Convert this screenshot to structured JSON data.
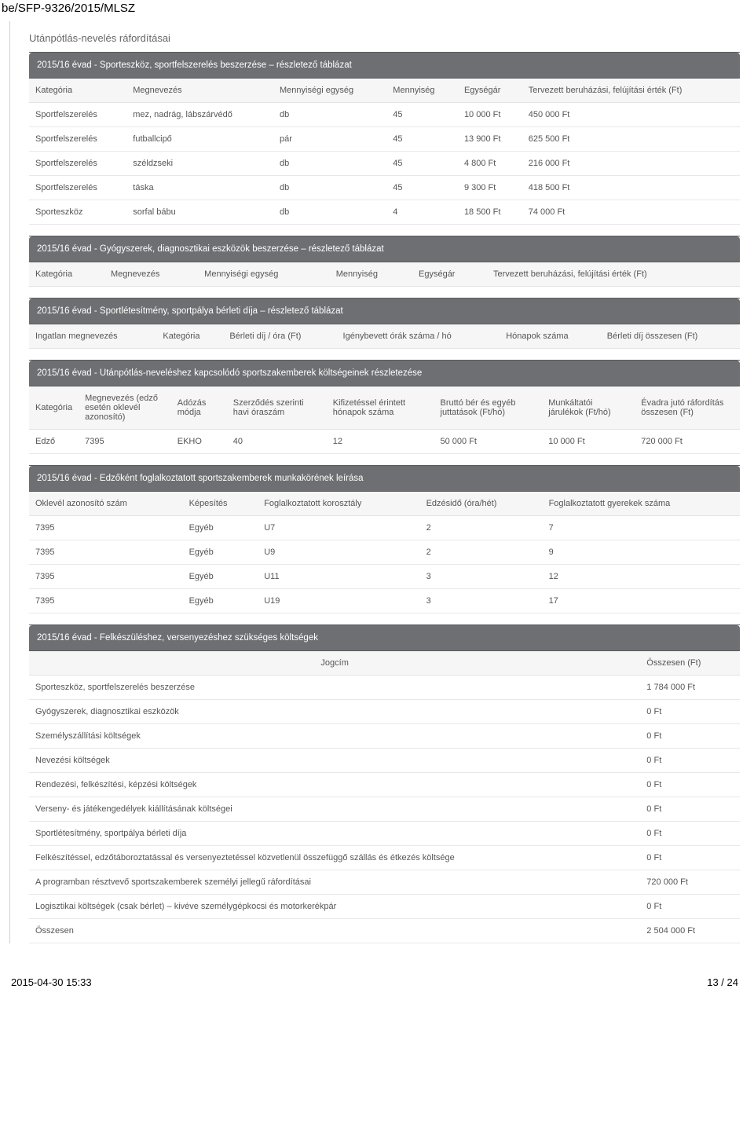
{
  "docId": "be/SFP-9326/2015/MLSZ",
  "sectionTitle": "Utánpótlás-nevelés ráfordításai",
  "table1": {
    "title": "2015/16 évad - Sporteszköz, sportfelszerelés beszerzése – részletező táblázat",
    "headers": [
      "Kategória",
      "Megnevezés",
      "Mennyiségi egység",
      "Mennyiség",
      "Egységár",
      "Tervezett beruházási, felújítási érték (Ft)"
    ],
    "rows": [
      [
        "Sportfelszerelés",
        "mez, nadrág, lábszárvédő",
        "db",
        "45",
        "10 000 Ft",
        "450 000 Ft"
      ],
      [
        "Sportfelszerelés",
        "futballcipő",
        "pár",
        "45",
        "13 900 Ft",
        "625 500 Ft"
      ],
      [
        "Sportfelszerelés",
        "széldzseki",
        "db",
        "45",
        "4 800 Ft",
        "216 000 Ft"
      ],
      [
        "Sportfelszerelés",
        "táska",
        "db",
        "45",
        "9 300 Ft",
        "418 500 Ft"
      ],
      [
        "Sporteszköz",
        "sorfal bábu",
        "db",
        "4",
        "18 500 Ft",
        "74 000 Ft"
      ]
    ]
  },
  "table2": {
    "title": "2015/16 évad - Gyógyszerek, diagnosztikai eszközök beszerzése – részletező táblázat",
    "headers": [
      "Kategória",
      "Megnevezés",
      "Mennyiségi egység",
      "Mennyiség",
      "Egységár",
      "Tervezett beruházási, felújítási érték (Ft)"
    ]
  },
  "table3": {
    "title": "2015/16 évad - Sportlétesítmény, sportpálya bérleti díja – részletező táblázat",
    "headers": [
      "Ingatlan megnevezés",
      "Kategória",
      "Bérleti díj / óra (Ft)",
      "Igénybevett órák száma / hó",
      "Hónapok száma",
      "Bérleti díj összesen (Ft)"
    ]
  },
  "table4": {
    "title": "2015/16 évad - Utánpótlás-neveléshez kapcsolódó sportszakemberek költségeinek részletezése",
    "headers": [
      "Kategória",
      "Megnevezés (edző esetén oklevél azonosító)",
      "Adózás módja",
      "Szerződés szerinti havi óraszám",
      "Kifizetéssel érintett hónapok száma",
      "Bruttó bér és egyéb juttatások (Ft/hó)",
      "Munkáltatói járulékok (Ft/hó)",
      "Évadra jutó ráfordítás összesen (Ft)"
    ],
    "rows": [
      [
        "Edző",
        "7395",
        "EKHO",
        "40",
        "12",
        "50 000 Ft",
        "10 000 Ft",
        "720 000 Ft"
      ]
    ]
  },
  "table5": {
    "title": "2015/16 évad - Edzőként foglalkoztatott sportszakemberek munkakörének leírása",
    "headers": [
      "Oklevél azonosító szám",
      "Képesítés",
      "Foglalkoztatott korosztály",
      "Edzésidő (óra/hét)",
      "Foglalkoztatott gyerekek száma"
    ],
    "rows": [
      [
        "7395",
        "Egyéb",
        "U7",
        "2",
        "7"
      ],
      [
        "7395",
        "Egyéb",
        "U9",
        "2",
        "9"
      ],
      [
        "7395",
        "Egyéb",
        "U11",
        "3",
        "12"
      ],
      [
        "7395",
        "Egyéb",
        "U19",
        "3",
        "17"
      ]
    ]
  },
  "table6": {
    "title": "2015/16 évad - Felkészüléshez, versenyezéshez szükséges költségek",
    "headers": [
      "Jogcím",
      "Összesen (Ft)"
    ],
    "rows": [
      [
        "Sporteszköz, sportfelszerelés beszerzése",
        "1 784 000 Ft"
      ],
      [
        "Gyógyszerek, diagnosztikai eszközök",
        "0 Ft"
      ],
      [
        "Személyszállítási költségek",
        "0 Ft"
      ],
      [
        "Nevezési költségek",
        "0 Ft"
      ],
      [
        "Rendezési, felkészítési, képzési költségek",
        "0 Ft"
      ],
      [
        "Verseny- és játékengedélyek kiállításának költségei",
        "0 Ft"
      ],
      [
        "Sportlétesítmény, sportpálya bérleti díja",
        "0 Ft"
      ],
      [
        "Felkészítéssel, edzőtáboroztatással és versenyeztetéssel közvetlenül összefüggő szállás és étkezés költsége",
        "0 Ft"
      ],
      [
        "A programban résztvevő sportszakemberek személyi jellegű ráfordításai",
        "720 000 Ft"
      ],
      [
        "Logisztikai költségek (csak bérlet) – kivéve személygépkocsi és motorkerékpár",
        "0 Ft"
      ],
      [
        "Összesen",
        "2 504 000 Ft"
      ]
    ]
  },
  "footer": {
    "date": "2015-04-30 15:33",
    "page": "13 / 24"
  }
}
